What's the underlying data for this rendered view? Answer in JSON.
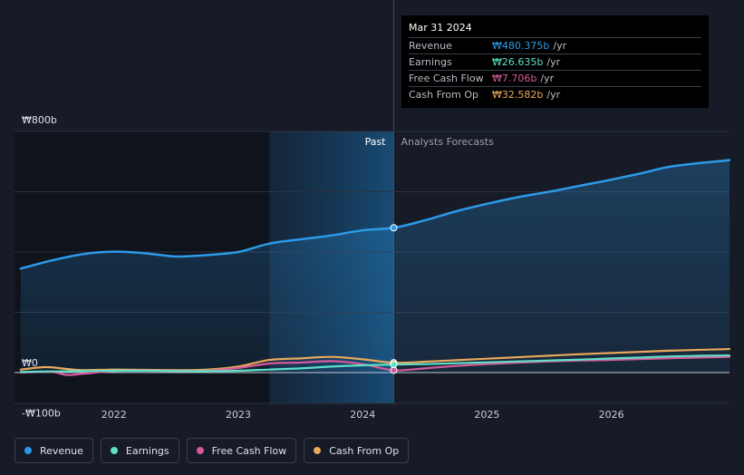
{
  "tooltip": {
    "date": "Mar 31 2024",
    "rows": [
      {
        "label": "Revenue",
        "value": "₩480.375b",
        "unit": "/yr",
        "color": "#2d9ae8"
      },
      {
        "label": "Earnings",
        "value": "₩26.635b",
        "unit": "/yr",
        "color": "#5ee0c6"
      },
      {
        "label": "Free Cash Flow",
        "value": "₩7.706b",
        "unit": "/yr",
        "color": "#d65a9a"
      },
      {
        "label": "Cash From Op",
        "value": "₩32.582b",
        "unit": "/yr",
        "color": "#e8a95b"
      }
    ]
  },
  "legend": [
    {
      "label": "Revenue",
      "color": "#2d9ae8"
    },
    {
      "label": "Earnings",
      "color": "#5ee0c6"
    },
    {
      "label": "Free Cash Flow",
      "color": "#d65a9a"
    },
    {
      "label": "Cash From Op",
      "color": "#e8a95b"
    }
  ],
  "chart_data": {
    "type": "line",
    "title": "",
    "xlabel": "",
    "ylabel": "",
    "unit": "KRW billions",
    "xlim": [
      2021.2,
      2026.95
    ],
    "ylim": [
      -100,
      800
    ],
    "past_label": "Past",
    "forecast_label": "Analysts Forecasts",
    "forecast_start": 2024.25,
    "highlight_start": 2023.25,
    "y_tick_labels": [
      {
        "value": 800,
        "label": "₩800b"
      },
      {
        "value": 0,
        "label": "₩0"
      },
      {
        "value": -100,
        "label": "-₩100b"
      }
    ],
    "gridlines": [
      800,
      600,
      400,
      200,
      0
    ],
    "x_ticks": [
      {
        "value": 2022,
        "label": "2022"
      },
      {
        "value": 2023,
        "label": "2023"
      },
      {
        "value": 2024,
        "label": "2024"
      },
      {
        "value": 2025,
        "label": "2025"
      },
      {
        "value": 2026,
        "label": "2026"
      }
    ],
    "series": [
      {
        "name": "Revenue",
        "color": "#2d9ae8",
        "fill": true,
        "points": [
          [
            2021.25,
            345
          ],
          [
            2021.5,
            372
          ],
          [
            2021.75,
            393
          ],
          [
            2022.0,
            401
          ],
          [
            2022.25,
            396
          ],
          [
            2022.5,
            385
          ],
          [
            2022.75,
            390
          ],
          [
            2023.0,
            400
          ],
          [
            2023.25,
            428
          ],
          [
            2023.5,
            442
          ],
          [
            2023.75,
            455
          ],
          [
            2024.0,
            472
          ],
          [
            2024.25,
            480.375
          ],
          [
            2024.5,
            505
          ],
          [
            2024.75,
            535
          ],
          [
            2025.0,
            560
          ],
          [
            2025.25,
            582
          ],
          [
            2025.5,
            600
          ],
          [
            2025.75,
            620
          ],
          [
            2026.0,
            640
          ],
          [
            2026.25,
            662
          ],
          [
            2026.5,
            685
          ],
          [
            2026.95,
            705
          ]
        ]
      },
      {
        "name": "Earnings",
        "color": "#5ee0c6",
        "fill": false,
        "points": [
          [
            2021.25,
            2
          ],
          [
            2021.5,
            4
          ],
          [
            2021.75,
            5
          ],
          [
            2022.0,
            6
          ],
          [
            2022.25,
            6
          ],
          [
            2022.5,
            5
          ],
          [
            2022.75,
            5
          ],
          [
            2023.0,
            6
          ],
          [
            2023.25,
            10
          ],
          [
            2023.5,
            14
          ],
          [
            2023.75,
            20
          ],
          [
            2024.0,
            24
          ],
          [
            2024.25,
            26.635
          ],
          [
            2024.5,
            28
          ],
          [
            2024.75,
            31
          ],
          [
            2025.0,
            34
          ],
          [
            2025.25,
            37
          ],
          [
            2025.5,
            40
          ],
          [
            2025.75,
            43
          ],
          [
            2026.0,
            47
          ],
          [
            2026.25,
            50
          ],
          [
            2026.5,
            54
          ],
          [
            2026.95,
            57
          ]
        ]
      },
      {
        "name": "Free Cash Flow",
        "color": "#d65a9a",
        "fill": false,
        "points": [
          [
            2021.25,
            0
          ],
          [
            2021.5,
            2
          ],
          [
            2021.62,
            -8
          ],
          [
            2021.75,
            -4
          ],
          [
            2022.0,
            5
          ],
          [
            2022.25,
            7
          ],
          [
            2022.5,
            5
          ],
          [
            2022.75,
            6
          ],
          [
            2023.0,
            15
          ],
          [
            2023.25,
            30
          ],
          [
            2023.5,
            33
          ],
          [
            2023.75,
            38
          ],
          [
            2024.0,
            28
          ],
          [
            2024.25,
            7.706
          ],
          [
            2024.5,
            14
          ],
          [
            2024.75,
            22
          ],
          [
            2025.0,
            28
          ],
          [
            2025.25,
            33
          ],
          [
            2025.5,
            37
          ],
          [
            2025.75,
            40
          ],
          [
            2026.0,
            42
          ],
          [
            2026.25,
            45
          ],
          [
            2026.5,
            48
          ],
          [
            2026.95,
            52
          ]
        ]
      },
      {
        "name": "Cash From Op",
        "color": "#e8a95b",
        "fill": false,
        "points": [
          [
            2021.25,
            10
          ],
          [
            2021.45,
            18
          ],
          [
            2021.62,
            12
          ],
          [
            2021.75,
            8
          ],
          [
            2022.0,
            10
          ],
          [
            2022.25,
            9
          ],
          [
            2022.5,
            8
          ],
          [
            2022.75,
            10
          ],
          [
            2023.0,
            20
          ],
          [
            2023.25,
            42
          ],
          [
            2023.5,
            47
          ],
          [
            2023.75,
            52
          ],
          [
            2024.0,
            44
          ],
          [
            2024.25,
            32.582
          ],
          [
            2024.5,
            36
          ],
          [
            2024.75,
            41
          ],
          [
            2025.0,
            46
          ],
          [
            2025.25,
            51
          ],
          [
            2025.5,
            56
          ],
          [
            2025.75,
            61
          ],
          [
            2026.0,
            65
          ],
          [
            2026.25,
            69
          ],
          [
            2026.5,
            73
          ],
          [
            2026.95,
            78
          ]
        ]
      }
    ]
  }
}
